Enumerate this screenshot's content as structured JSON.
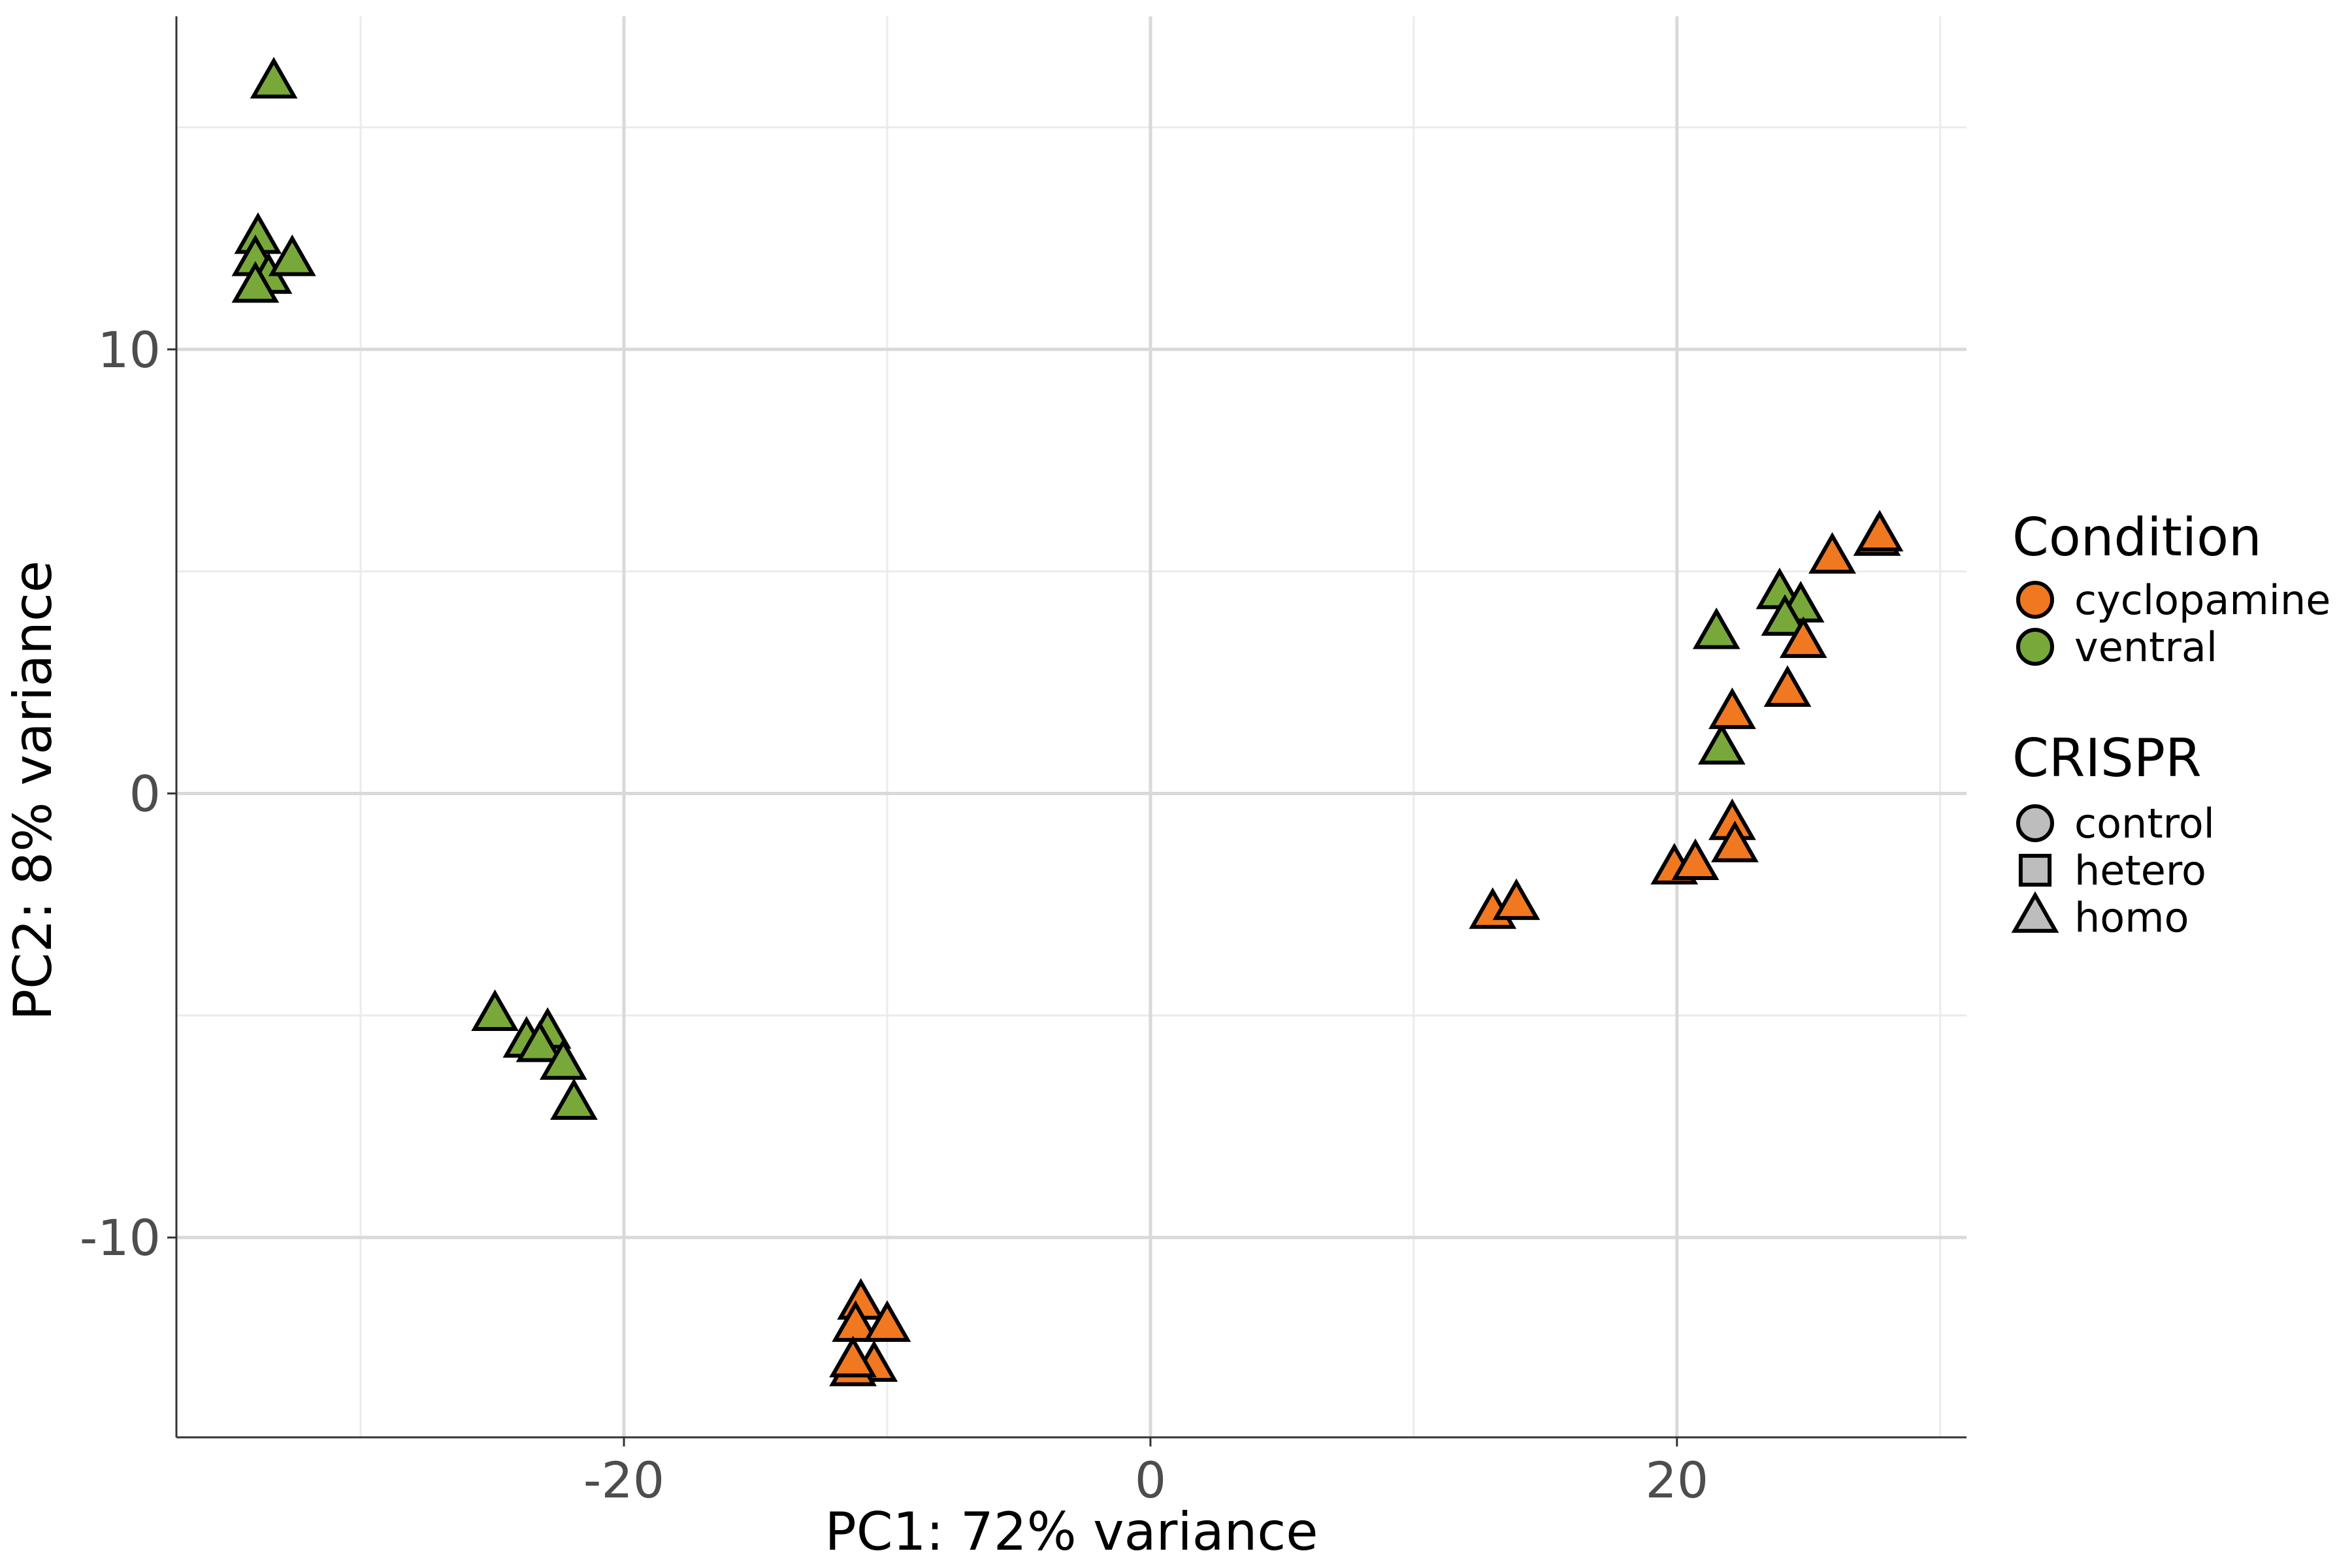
{
  "chart_data": {
    "type": "scatter",
    "title": "",
    "xlabel": "PC1: 72% variance",
    "ylabel": "PC2: 8% variance",
    "xlim": [
      -37,
      31
    ],
    "ylim": [
      -14.5,
      17.5
    ],
    "x_ticks": [
      -20,
      0,
      20
    ],
    "x_tick_labels": [
      "-20",
      "0",
      "20"
    ],
    "x_minor_ticks": [
      -30,
      -10,
      10,
      30
    ],
    "y_ticks": [
      -10,
      0,
      10
    ],
    "y_tick_labels": [
      "-10",
      "0",
      "10"
    ],
    "y_minor_ticks": [
      -5,
      5,
      15
    ],
    "grid": true,
    "legend_position": "right",
    "legend": {
      "color_title": "Condition",
      "color_items": [
        {
          "label": "cyclopamine",
          "color": "#f07820"
        },
        {
          "label": "ventral",
          "color": "#78a83a"
        }
      ],
      "shape_title": "CRISPR",
      "shape_items": [
        {
          "label": "control",
          "shape": "circle"
        },
        {
          "label": "hetero",
          "shape": "square"
        },
        {
          "label": "homo",
          "shape": "triangle"
        }
      ],
      "neutral_fill": "#bdbdbd"
    },
    "colors": {
      "cyclopamine": "#f07820",
      "ventral": "#78a83a"
    },
    "series": [
      {
        "condition": "ventral",
        "crispr": "hetero",
        "points": [
          [
            -33.3,
            16.0
          ],
          [
            -33.9,
            12.5
          ],
          [
            -34.0,
            12.0
          ],
          [
            -33.5,
            11.6
          ],
          [
            -32.6,
            12.0
          ],
          [
            -34.0,
            11.4
          ]
        ]
      },
      {
        "condition": "ventral",
        "crispr": "control",
        "points": [
          [
            -24.9,
            -5.0
          ],
          [
            -23.7,
            -5.6
          ],
          [
            -22.9,
            -5.4
          ],
          [
            -23.2,
            -5.7
          ],
          [
            -22.3,
            -6.1
          ],
          [
            -21.9,
            -7.0
          ]
        ]
      },
      {
        "condition": "cyclopamine",
        "crispr": "control",
        "points": [
          [
            -11.0,
            -11.5
          ],
          [
            -11.2,
            -12.0
          ],
          [
            -10.0,
            -12.0
          ],
          [
            -10.5,
            -12.9
          ],
          [
            -11.3,
            -13.0
          ],
          [
            -11.3,
            -12.8
          ]
        ]
      },
      {
        "condition": "cyclopamine",
        "crispr": "hetero",
        "points": [
          [
            13.0,
            -2.7
          ],
          [
            13.9,
            -2.5
          ],
          [
            19.9,
            -1.7
          ],
          [
            20.7,
            -1.6
          ],
          [
            22.1,
            -0.7
          ],
          [
            22.2,
            -1.2
          ]
        ]
      },
      {
        "condition": "ventral",
        "crispr": "homo",
        "points": [
          [
            21.5,
            3.6
          ],
          [
            21.7,
            1.0
          ],
          [
            23.9,
            4.5
          ],
          [
            24.7,
            4.2
          ],
          [
            24.1,
            3.9
          ]
        ]
      },
      {
        "condition": "cyclopamine",
        "crispr": "homo",
        "points": [
          [
            22.1,
            1.8
          ],
          [
            24.2,
            2.3
          ],
          [
            24.8,
            3.4
          ],
          [
            25.9,
            5.3
          ],
          [
            27.6,
            5.7
          ],
          [
            27.7,
            5.8
          ]
        ]
      }
    ]
  }
}
